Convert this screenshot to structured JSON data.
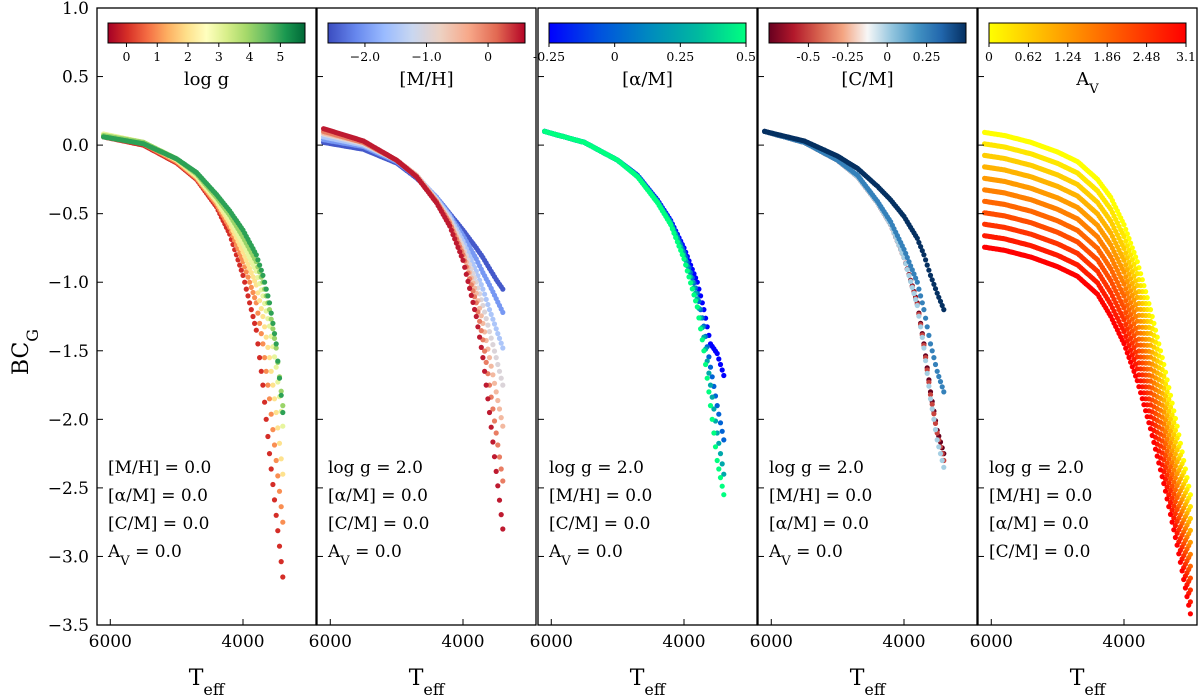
{
  "chart_data": {
    "type": "scatter",
    "ylabel": "BC",
    "ylabel_sub": "G",
    "ylim": [
      -3.5,
      1.0
    ],
    "yticks": [
      1.0,
      0.5,
      0.0,
      -0.5,
      -1.0,
      -1.5,
      -2.0,
      -2.5,
      -3.0,
      -3.5
    ],
    "ytick_labels": [
      "1.0",
      "0.5",
      "0.0",
      "−0.5",
      "−1.0",
      "−1.5",
      "−2.0",
      "−2.5",
      "−3.0",
      "−3.5"
    ],
    "xlabel": "T",
    "xlabel_sub": "eff",
    "xlim": [
      6200,
      2900
    ],
    "xticks": [
      6000,
      4000
    ],
    "xtick_labels": [
      "6000",
      "4000"
    ],
    "panels": [
      {
        "colorbar": {
          "label": "log g",
          "label_main": "log g",
          "label_sub": "",
          "range": [
            -0.6,
            5.8
          ],
          "ticks": [
            0,
            1,
            2,
            3,
            4,
            5
          ],
          "tick_labels": [
            "0",
            "1",
            "2",
            "3",
            "4",
            "5"
          ],
          "colors": [
            "#a50026",
            "#d73027",
            "#f46d43",
            "#fdae61",
            "#fee08b",
            "#ffffbf",
            "#d9ef8b",
            "#a6d96a",
            "#66bd63",
            "#1a9850",
            "#006837"
          ]
        },
        "annotations": [
          "[M/H] = 0.0",
          "[α/M] = 0.0",
          "[C/M] = 0.0",
          "AV = 0.0"
        ],
        "series": [
          {
            "name": "log g = 0",
            "cval": 0,
            "x": [
              6100,
              5500,
              5000,
              4700,
              4400,
              4200,
              4000,
              3800,
              3700,
              3600,
              3500,
              3400
            ],
            "y": [
              0.06,
              0.0,
              -0.13,
              -0.25,
              -0.45,
              -0.65,
              -0.95,
              -1.35,
              -1.75,
              -2.25,
              -2.7,
              -3.15
            ]
          },
          {
            "name": "log g = 1",
            "cval": 1,
            "x": [
              6100,
              5500,
              5000,
              4700,
              4400,
              4200,
              4000,
              3800,
              3700,
              3600,
              3500,
              3400
            ],
            "y": [
              0.07,
              0.01,
              -0.12,
              -0.24,
              -0.43,
              -0.6,
              -0.85,
              -1.15,
              -1.45,
              -1.85,
              -2.3,
              -2.75
            ]
          },
          {
            "name": "log g = 2",
            "cval": 2,
            "x": [
              6100,
              5500,
              5000,
              4700,
              4400,
              4200,
              4000,
              3800,
              3700,
              3600,
              3500,
              3400
            ],
            "y": [
              0.08,
              0.02,
              -0.11,
              -0.23,
              -0.41,
              -0.57,
              -0.78,
              -1.02,
              -1.25,
              -1.55,
              -1.95,
              -2.4
            ]
          },
          {
            "name": "log g = 3",
            "cval": 3,
            "x": [
              6100,
              5500,
              5000,
              4700,
              4400,
              4200,
              4000,
              3800,
              3700,
              3600,
              3500,
              3400
            ],
            "y": [
              0.08,
              0.02,
              -0.1,
              -0.22,
              -0.4,
              -0.54,
              -0.72,
              -0.92,
              -1.1,
              -1.32,
              -1.62,
              -2.05
            ]
          },
          {
            "name": "log g = 4",
            "cval": 4,
            "x": [
              6100,
              5500,
              5000,
              4700,
              4400,
              4200,
              4000,
              3800,
              3700,
              3600,
              3500,
              3400
            ],
            "y": [
              0.07,
              0.02,
              -0.1,
              -0.21,
              -0.38,
              -0.51,
              -0.67,
              -0.85,
              -1.0,
              -1.2,
              -1.48,
              -1.9
            ]
          },
          {
            "name": "log g = 5",
            "cval": 5,
            "x": [
              6100,
              5500,
              5000,
              4700,
              4400,
              4200,
              4000,
              3800,
              3700,
              3600,
              3500,
              3400
            ],
            "y": [
              0.06,
              0.01,
              -0.1,
              -0.2,
              -0.36,
              -0.48,
              -0.62,
              -0.8,
              -0.95,
              -1.15,
              -1.45,
              -1.95
            ]
          }
        ]
      },
      {
        "colorbar": {
          "label": "[M/H]",
          "label_main": "[M/H]",
          "label_sub": "",
          "range": [
            -2.6,
            0.6
          ],
          "ticks": [
            -2.0,
            -1.0,
            0
          ],
          "tick_labels": [
            "−2.0",
            "−1.0",
            "0"
          ],
          "colors": [
            "#3b4cc0",
            "#6788ee",
            "#9abbff",
            "#c9d7f0",
            "#edd1c2",
            "#f7a889",
            "#e26952",
            "#b40426"
          ]
        },
        "annotations": [
          "log g = 2.0",
          "[α/M] = 0.0",
          "[C/M] = 0.0",
          "AV = 0.0"
        ],
        "series": [
          {
            "name": "[M/H] = -2.5",
            "cval": -2.5,
            "x": [
              6100,
              5500,
              5000,
              4700,
              4400,
              4200,
              4000,
              3800,
              3700,
              3600,
              3500,
              3400
            ],
            "y": [
              0.02,
              -0.03,
              -0.13,
              -0.24,
              -0.38,
              -0.5,
              -0.62,
              -0.75,
              -0.82,
              -0.9,
              -0.98,
              -1.05
            ]
          },
          {
            "name": "[M/H] = -2.0",
            "cval": -2.0,
            "x": [
              6100,
              5500,
              5000,
              4700,
              4400,
              4200,
              4000,
              3800,
              3700,
              3600,
              3500,
              3400
            ],
            "y": [
              0.04,
              -0.01,
              -0.12,
              -0.23,
              -0.38,
              -0.51,
              -0.66,
              -0.83,
              -0.93,
              -1.02,
              -1.12,
              -1.22
            ]
          },
          {
            "name": "[M/H] = -1.5",
            "cval": -1.5,
            "x": [
              6100,
              5500,
              5000,
              4700,
              4400,
              4200,
              4000,
              3800,
              3700,
              3600,
              3500,
              3400
            ],
            "y": [
              0.06,
              0.0,
              -0.11,
              -0.22,
              -0.39,
              -0.52,
              -0.7,
              -0.92,
              -1.05,
              -1.2,
              -1.34,
              -1.48
            ]
          },
          {
            "name": "[M/H] = -1.0",
            "cval": -1.0,
            "x": [
              6100,
              5500,
              5000,
              4700,
              4400,
              4200,
              4000,
              3800,
              3700,
              3600,
              3500,
              3400
            ],
            "y": [
              0.08,
              0.01,
              -0.11,
              -0.22,
              -0.4,
              -0.54,
              -0.74,
              -1.0,
              -1.17,
              -1.36,
              -1.55,
              -1.75
            ]
          },
          {
            "name": "[M/H] = -0.5",
            "cval": -0.5,
            "x": [
              6100,
              5500,
              5000,
              4700,
              4400,
              4200,
              4000,
              3800,
              3700,
              3600,
              3500,
              3400
            ],
            "y": [
              0.09,
              0.02,
              -0.11,
              -0.22,
              -0.41,
              -0.56,
              -0.78,
              -1.08,
              -1.3,
              -1.55,
              -1.8,
              -2.05
            ]
          },
          {
            "name": "[M/H] = 0.0",
            "cval": 0.0,
            "x": [
              6100,
              5500,
              5000,
              4700,
              4400,
              4200,
              4000,
              3800,
              3700,
              3600,
              3500,
              3400
            ],
            "y": [
              0.1,
              0.02,
              -0.11,
              -0.23,
              -0.41,
              -0.57,
              -0.8,
              -1.15,
              -1.42,
              -1.75,
              -2.1,
              -2.45
            ]
          },
          {
            "name": "[M/H] = 0.5",
            "cval": 0.5,
            "x": [
              6100,
              5500,
              5000,
              4700,
              4400,
              4200,
              4000,
              3800,
              3700,
              3600,
              3500,
              3400
            ],
            "y": [
              0.12,
              0.03,
              -0.11,
              -0.23,
              -0.42,
              -0.59,
              -0.84,
              -1.25,
              -1.55,
              -1.95,
              -2.38,
              -2.8
            ]
          }
        ]
      },
      {
        "colorbar": {
          "label": "[α/M]",
          "label_main": "[α/M]",
          "label_sub": "",
          "range": [
            -0.25,
            0.5
          ],
          "ticks": [
            -0.25,
            0,
            0.25,
            0.5
          ],
          "tick_labels": [
            "-0.25",
            "0",
            "0.25",
            "0.5"
          ],
          "colors": [
            "#0000ff",
            "#0050e0",
            "#0088c0",
            "#00b8a0",
            "#00ff80"
          ]
        },
        "annotations": [
          "log g = 2.0",
          "[M/H] = 0.0",
          "[C/M] = 0.0",
          "AV = 0.0"
        ],
        "series": [
          {
            "name": "[α/M] = -0.25",
            "cval": -0.25,
            "x": [
              6100,
              5500,
              5000,
              4700,
              4400,
              4200,
              4000,
              3800,
              3700,
              3600,
              3500,
              3400
            ],
            "y": [
              0.1,
              0.02,
              -0.11,
              -0.22,
              -0.4,
              -0.55,
              -0.75,
              -1.0,
              -1.2,
              -1.45,
              -1.52,
              -1.68
            ]
          },
          {
            "name": "[α/M] = 0.0",
            "cval": 0.0,
            "x": [
              6100,
              5500,
              5000,
              4700,
              4400,
              4200,
              4000,
              3800,
              3700,
              3600,
              3500,
              3400
            ],
            "y": [
              0.1,
              0.02,
              -0.11,
              -0.22,
              -0.41,
              -0.56,
              -0.78,
              -1.08,
              -1.32,
              -1.62,
              -1.9,
              -2.15
            ]
          },
          {
            "name": "[α/M] = 0.25",
            "cval": 0.25,
            "x": [
              6100,
              5500,
              5000,
              4700,
              4400,
              4200,
              4000,
              3800,
              3700,
              3600,
              3500,
              3400
            ],
            "y": [
              0.1,
              0.02,
              -0.11,
              -0.23,
              -0.41,
              -0.57,
              -0.8,
              -1.12,
              -1.4,
              -1.75,
              -2.1,
              -2.4
            ]
          },
          {
            "name": "[α/M] = 0.5",
            "cval": 0.5,
            "x": [
              6100,
              5500,
              5000,
              4700,
              4400,
              4200,
              4000,
              3800,
              3700,
              3600,
              3500,
              3400
            ],
            "y": [
              0.1,
              0.02,
              -0.11,
              -0.23,
              -0.42,
              -0.58,
              -0.83,
              -1.18,
              -1.5,
              -1.9,
              -2.3,
              -2.55
            ]
          }
        ]
      },
      {
        "colorbar": {
          "label": "[C/M]",
          "label_main": "[C/M]",
          "label_sub": "",
          "range": [
            -0.75,
            0.5
          ],
          "ticks": [
            -0.5,
            -0.25,
            0,
            0.25
          ],
          "tick_labels": [
            "-0.5",
            "-0.25",
            "0",
            "0.25"
          ],
          "colors": [
            "#67001f",
            "#b2182b",
            "#d6604d",
            "#f4a582",
            "#f7f7f7",
            "#92c5de",
            "#4393c3",
            "#2166ac",
            "#053061"
          ]
        },
        "annotations": [
          "log g = 2.0",
          "[M/H] = 0.0",
          "[α/M] = 0.0",
          "AV = 0.0"
        ],
        "series": [
          {
            "name": "[C/M] = -0.75",
            "cval": -0.75,
            "x": [
              6100,
              5500,
              5000,
              4700,
              4400,
              4200,
              4000,
              3800,
              3700,
              3600,
              3500,
              3400
            ],
            "y": [
              0.1,
              0.02,
              -0.11,
              -0.23,
              -0.42,
              -0.58,
              -0.82,
              -1.15,
              -1.45,
              -1.8,
              -2.08,
              -2.25
            ]
          },
          {
            "name": "[C/M] = -0.5",
            "cval": -0.5,
            "x": [
              6100,
              5500,
              5000,
              4700,
              4400,
              4200,
              4000,
              3800,
              3700,
              3600,
              3500,
              3400
            ],
            "y": [
              0.1,
              0.02,
              -0.11,
              -0.23,
              -0.42,
              -0.58,
              -0.82,
              -1.16,
              -1.46,
              -1.82,
              -2.1,
              -2.3
            ]
          },
          {
            "name": "[C/M] = 0.0",
            "cval": 0.0,
            "x": [
              6100,
              5500,
              5000,
              4700,
              4400,
              4200,
              4000,
              3800,
              3700,
              3600,
              3500,
              3400
            ],
            "y": [
              0.1,
              0.02,
              -0.11,
              -0.23,
              -0.42,
              -0.58,
              -0.82,
              -1.17,
              -1.48,
              -1.85,
              -2.15,
              -2.35
            ]
          },
          {
            "name": "[C/M] = 0.25",
            "cval": 0.25,
            "x": [
              6100,
              5500,
              5000,
              4700,
              4400,
              4200,
              4000,
              3800,
              3700,
              3600,
              3500,
              3400
            ],
            "y": [
              0.1,
              0.02,
              -0.11,
              -0.22,
              -0.41,
              -0.56,
              -0.76,
              -1.0,
              -1.2,
              -1.45,
              -1.65,
              -1.8
            ]
          },
          {
            "name": "[C/M] = 0.5",
            "cval": 0.5,
            "x": [
              6100,
              5500,
              5000,
              4700,
              4400,
              4200,
              4000,
              3800,
              3700,
              3600,
              3500,
              3400
            ],
            "y": [
              0.1,
              0.03,
              -0.08,
              -0.17,
              -0.3,
              -0.4,
              -0.52,
              -0.68,
              -0.8,
              -0.95,
              -1.08,
              -1.2
            ]
          }
        ]
      },
      {
        "colorbar": {
          "label": "AV",
          "label_main": "A",
          "label_sub": "V",
          "range": [
            0,
            3.1
          ],
          "ticks": [
            0,
            0.62,
            1.24,
            1.86,
            2.48,
            3.1
          ],
          "tick_labels": [
            "0",
            "0.62",
            "1.24",
            "1.86",
            "2.48",
            "3.1"
          ],
          "colors": [
            "#ffff00",
            "#ffc000",
            "#ff8000",
            "#ff4000",
            "#ff0000"
          ]
        },
        "annotations": [
          "log g = 2.0",
          "[M/H] = 0.0",
          "[α/M] = 0.0",
          "[C/M] = 0.0"
        ],
        "av_family": {
          "av_values": [
            0,
            0.31,
            0.62,
            0.93,
            1.24,
            1.55,
            1.86,
            2.17,
            2.48,
            2.79,
            3.1
          ],
          "x": [
            6200,
            5800,
            5400,
            5000,
            4700,
            4400,
            4200,
            4000,
            3800,
            3600,
            3400,
            3200,
            3000
          ],
          "y_base": [
            0.1,
            0.07,
            0.02,
            -0.05,
            -0.12,
            -0.25,
            -0.38,
            -0.58,
            -0.85,
            -1.2,
            -1.6,
            -2.05,
            -2.55
          ],
          "extinction_slope": [
            0.27,
            0.27,
            0.27,
            0.27,
            0.27,
            0.27,
            0.28,
            0.28,
            0.28,
            0.28,
            0.28,
            0.28,
            0.28
          ]
        }
      }
    ]
  }
}
